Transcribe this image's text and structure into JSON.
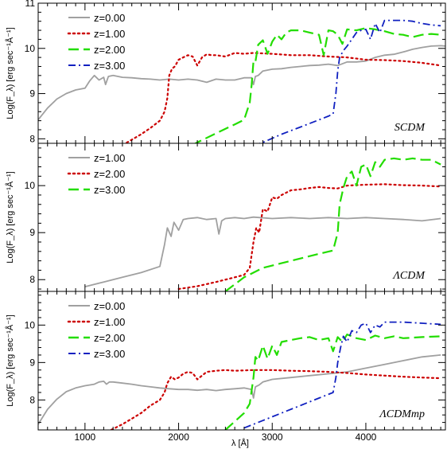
{
  "chart_data": [
    {
      "type": "line",
      "model_label": "SCDM",
      "ylabel": "Log(F_λ) [erg sec⁻¹Å⁻¹]",
      "ylim": [
        7.9,
        11.0
      ],
      "yticks": [
        8,
        9,
        10,
        11
      ],
      "xlim": [
        500,
        4850
      ],
      "xticks": [
        1000,
        2000,
        3000,
        4000
      ],
      "legend": "top-left",
      "series": [
        {
          "name": "z=0.00",
          "color": "#a0a0a0",
          "dash": "solid",
          "width": 1.8,
          "x": [
            500,
            600,
            700,
            800,
            900,
            1000,
            1050,
            1100,
            1150,
            1200,
            1220,
            1250,
            1300,
            1400,
            1500,
            1600,
            1700,
            1800,
            1900,
            2000,
            2100,
            2200,
            2300,
            2400,
            2500,
            2600,
            2700,
            2780,
            2800,
            2820,
            2850,
            2900,
            3000,
            3100,
            3200,
            3300,
            3400,
            3500,
            3600,
            3700,
            3800,
            3900,
            4000,
            4100,
            4200,
            4300,
            4400,
            4500,
            4600,
            4700,
            4800,
            4850
          ],
          "y": [
            8.42,
            8.68,
            8.88,
            9.0,
            9.08,
            9.12,
            9.28,
            9.4,
            9.3,
            9.36,
            9.2,
            9.38,
            9.4,
            9.36,
            9.35,
            9.33,
            9.32,
            9.3,
            9.32,
            9.3,
            9.32,
            9.3,
            9.25,
            9.32,
            9.3,
            9.3,
            9.35,
            9.35,
            9.2,
            9.38,
            9.4,
            9.5,
            9.54,
            9.55,
            9.58,
            9.6,
            9.62,
            9.63,
            9.65,
            9.62,
            9.7,
            9.7,
            9.72,
            9.8,
            9.85,
            9.87,
            9.92,
            9.98,
            10.02,
            10.05,
            10.06,
            10.05
          ]
        },
        {
          "name": "z=1.00",
          "color": "#cc0000",
          "dash": "dot",
          "width": 2.2,
          "x": [
            1000,
            1100,
            1200,
            1300,
            1400,
            1500,
            1600,
            1700,
            1800,
            1850,
            1880,
            1900,
            1930,
            1960,
            2000,
            2050,
            2100,
            2150,
            2200,
            2250,
            2300,
            2350,
            2400,
            2500,
            2600,
            2700,
            2800,
            3000,
            3200,
            3400,
            3600,
            3800,
            4000,
            4200,
            4400,
            4600,
            4800
          ],
          "y": [
            7.4,
            7.5,
            7.62,
            7.74,
            7.86,
            7.98,
            8.1,
            8.24,
            8.4,
            8.6,
            8.9,
            9.4,
            9.55,
            9.6,
            9.75,
            9.8,
            9.85,
            9.82,
            9.62,
            9.8,
            9.87,
            9.85,
            9.85,
            9.82,
            9.9,
            9.88,
            9.9,
            9.88,
            9.85,
            9.85,
            9.82,
            9.8,
            9.75,
            9.74,
            9.72,
            9.68,
            9.62
          ]
        },
        {
          "name": "z=2.00",
          "color": "#22dd00",
          "dash": "dash",
          "width": 2.2,
          "x": [
            2000,
            2200,
            2400,
            2600,
            2700,
            2760,
            2780,
            2800,
            2820,
            2850,
            2900,
            2950,
            3000,
            3050,
            3100,
            3150,
            3200,
            3300,
            3400,
            3500,
            3550,
            3600,
            3650,
            3700,
            3750,
            3800,
            3900,
            4000,
            4100,
            4200,
            4300,
            4400,
            4500,
            4600,
            4700,
            4800
          ],
          "y": [
            7.7,
            7.92,
            8.12,
            8.32,
            8.42,
            8.8,
            9.2,
            9.72,
            9.7,
            10.08,
            10.18,
            9.88,
            10.15,
            10.3,
            10.2,
            10.35,
            10.4,
            10.4,
            10.35,
            10.3,
            9.85,
            10.4,
            10.38,
            10.3,
            10.1,
            10.42,
            10.4,
            10.45,
            10.42,
            10.38,
            10.32,
            10.3,
            10.25,
            10.3,
            10.32,
            10.3
          ]
        },
        {
          "name": "z=3.00",
          "color": "#1020c0",
          "dash": "dashdot",
          "width": 1.8,
          "x": [
            2500,
            2700,
            2900,
            3100,
            3300,
            3500,
            3600,
            3650,
            3680,
            3700,
            3720,
            3760,
            3800,
            3850,
            3900,
            3950,
            4000,
            4050,
            4100,
            4150,
            4200,
            4300,
            4400,
            4500,
            4600,
            4700,
            4800
          ],
          "y": [
            7.6,
            7.78,
            7.92,
            8.1,
            8.26,
            8.42,
            8.5,
            8.55,
            9.0,
            9.5,
            9.8,
            9.95,
            10.05,
            10.2,
            10.35,
            10.4,
            10.42,
            10.2,
            10.55,
            10.35,
            10.62,
            10.62,
            10.62,
            10.6,
            10.55,
            10.52,
            10.5
          ]
        }
      ]
    },
    {
      "type": "line",
      "model_label": "ΛCDM",
      "ylabel": "Log(F_λ) [erg sec⁻¹Å⁻¹]",
      "ylim": [
        7.75,
        10.9
      ],
      "yticks": [
        8,
        9,
        10
      ],
      "xlim": [
        500,
        4850
      ],
      "xticks": [
        1000,
        2000,
        3000,
        4000
      ],
      "legend": "top-left",
      "series": [
        {
          "name": "z=1.00",
          "color": "#a0a0a0",
          "dash": "solid",
          "width": 1.8,
          "x": [
            1000,
            1200,
            1400,
            1600,
            1800,
            1850,
            1880,
            1920,
            1950,
            2000,
            2050,
            2100,
            2200,
            2300,
            2400,
            2430,
            2460,
            2500,
            2600,
            2700,
            2800,
            3000,
            3200,
            3400,
            3600,
            3800,
            4000,
            4200,
            4400,
            4600,
            4800
          ],
          "y": [
            7.85,
            7.95,
            8.05,
            8.15,
            8.28,
            8.75,
            9.1,
            8.92,
            9.22,
            9.05,
            9.28,
            9.3,
            9.32,
            9.28,
            9.3,
            8.97,
            9.25,
            9.3,
            9.32,
            9.3,
            9.33,
            9.3,
            9.32,
            9.3,
            9.32,
            9.3,
            9.32,
            9.3,
            9.28,
            9.25,
            9.3
          ]
        },
        {
          "name": "z=2.00",
          "color": "#cc0000",
          "dash": "dot",
          "width": 2.2,
          "x": [
            2000,
            2200,
            2400,
            2600,
            2700,
            2760,
            2800,
            2830,
            2860,
            2900,
            2950,
            3000,
            3050,
            3100,
            3200,
            3300,
            3400,
            3500,
            3600,
            3700,
            3800,
            4000,
            4200,
            4400,
            4600,
            4800
          ],
          "y": [
            7.8,
            7.86,
            7.95,
            8.05,
            8.1,
            8.25,
            8.8,
            9.1,
            9.0,
            9.5,
            9.45,
            9.75,
            9.72,
            9.8,
            9.9,
            9.92,
            9.95,
            9.97,
            9.95,
            9.94,
            10.0,
            10.02,
            10.03,
            10.01,
            10.0,
            9.98
          ]
        },
        {
          "name": "z=3.00",
          "color": "#22dd00",
          "dash": "dash",
          "width": 2.2,
          "x": [
            2500,
            2700,
            2900,
            3100,
            3300,
            3500,
            3650,
            3700,
            3720,
            3760,
            3800,
            3850,
            3900,
            3950,
            4000,
            4050,
            4100,
            4150,
            4200,
            4300,
            4400,
            4500,
            4600,
            4700,
            4800
          ],
          "y": [
            7.75,
            8.05,
            8.25,
            8.35,
            8.45,
            8.55,
            8.62,
            9.0,
            9.6,
            9.95,
            10.2,
            10.3,
            10.0,
            10.4,
            10.45,
            10.2,
            10.5,
            10.4,
            10.55,
            10.58,
            10.55,
            10.58,
            10.55,
            10.55,
            10.45
          ]
        }
      ]
    },
    {
      "type": "line",
      "model_label": "ΛCDMmp",
      "ylabel": "Log(F_λ) [erg sec⁻¹Å⁻¹]",
      "xlabel": "λ [Å]",
      "ylim": [
        7.2,
        10.9
      ],
      "yticks": [
        8,
        9,
        10
      ],
      "xlim": [
        500,
        4850
      ],
      "xticks": [
        1000,
        2000,
        3000,
        4000
      ],
      "legend": "top-left",
      "series": [
        {
          "name": "z=0.00",
          "color": "#a0a0a0",
          "dash": "solid",
          "width": 1.8,
          "x": [
            500,
            600,
            700,
            800,
            900,
            1000,
            1100,
            1150,
            1200,
            1230,
            1260,
            1300,
            1400,
            1500,
            1600,
            1700,
            1800,
            1900,
            2000,
            2100,
            2200,
            2300,
            2400,
            2500,
            2600,
            2700,
            2780,
            2800,
            2820,
            2860,
            2900,
            3000,
            3200,
            3400,
            3600,
            3800,
            4000,
            4200,
            4400,
            4600,
            4800
          ],
          "y": [
            7.35,
            7.75,
            8.02,
            8.22,
            8.32,
            8.38,
            8.42,
            8.48,
            8.5,
            8.42,
            8.48,
            8.48,
            8.45,
            8.42,
            8.38,
            8.35,
            8.32,
            8.3,
            8.28,
            8.28,
            8.26,
            8.28,
            8.25,
            8.28,
            8.3,
            8.32,
            8.28,
            8.05,
            8.35,
            8.4,
            8.48,
            8.55,
            8.6,
            8.65,
            8.7,
            8.75,
            8.85,
            8.95,
            9.05,
            9.15,
            9.2
          ]
        },
        {
          "name": "z=1.00",
          "color": "#cc0000",
          "dash": "dot",
          "width": 2.2,
          "x": [
            1000,
            1200,
            1400,
            1500,
            1600,
            1700,
            1800,
            1850,
            1880,
            1920,
            1960,
            2000,
            2050,
            2100,
            2150,
            2200,
            2250,
            2300,
            2400,
            2500,
            2600,
            2800,
            3000,
            3200,
            3400,
            3600,
            3800,
            4000,
            4200,
            4400,
            4600,
            4800
          ],
          "y": [
            6.9,
            7.1,
            7.35,
            7.5,
            7.65,
            7.85,
            8.0,
            8.2,
            8.45,
            8.62,
            8.55,
            8.6,
            8.7,
            8.75,
            8.72,
            8.55,
            8.65,
            8.75,
            8.78,
            8.8,
            8.78,
            8.8,
            8.8,
            8.78,
            8.77,
            8.75,
            8.72,
            8.68,
            8.65,
            8.62,
            8.6,
            8.58
          ]
        },
        {
          "name": "z=2.00",
          "color": "#22dd00",
          "dash": "dash",
          "width": 2.2,
          "x": [
            2500,
            2700,
            2760,
            2800,
            2820,
            2850,
            2900,
            2950,
            3000,
            3050,
            3100,
            3200,
            3300,
            3400,
            3500,
            3600,
            3650,
            3700,
            3750,
            3800,
            3900,
            4000,
            4100,
            4200,
            4300,
            4400,
            4600,
            4800
          ],
          "y": [
            7.2,
            7.65,
            7.9,
            8.6,
            9.15,
            9.05,
            9.45,
            9.1,
            9.45,
            9.2,
            9.55,
            9.6,
            9.65,
            9.68,
            9.6,
            9.65,
            9.3,
            9.68,
            9.55,
            9.75,
            9.65,
            9.6,
            9.72,
            9.65,
            9.7,
            9.65,
            9.68,
            9.7
          ]
        },
        {
          "name": "z=3.00",
          "color": "#1020c0",
          "dash": "dashdot",
          "width": 1.8,
          "x": [
            2700,
            2900,
            3100,
            3300,
            3500,
            3650,
            3680,
            3700,
            3730,
            3760,
            3800,
            3850,
            3900,
            3950,
            4000,
            4050,
            4100,
            4150,
            4200,
            4400,
            4600,
            4800
          ],
          "y": [
            7.25,
            7.45,
            7.65,
            7.85,
            8.05,
            8.2,
            8.6,
            9.0,
            9.4,
            9.7,
            9.55,
            9.85,
            9.8,
            10.0,
            10.05,
            9.8,
            10.0,
            9.95,
            10.08,
            10.08,
            10.05,
            10.02
          ]
        }
      ]
    }
  ]
}
